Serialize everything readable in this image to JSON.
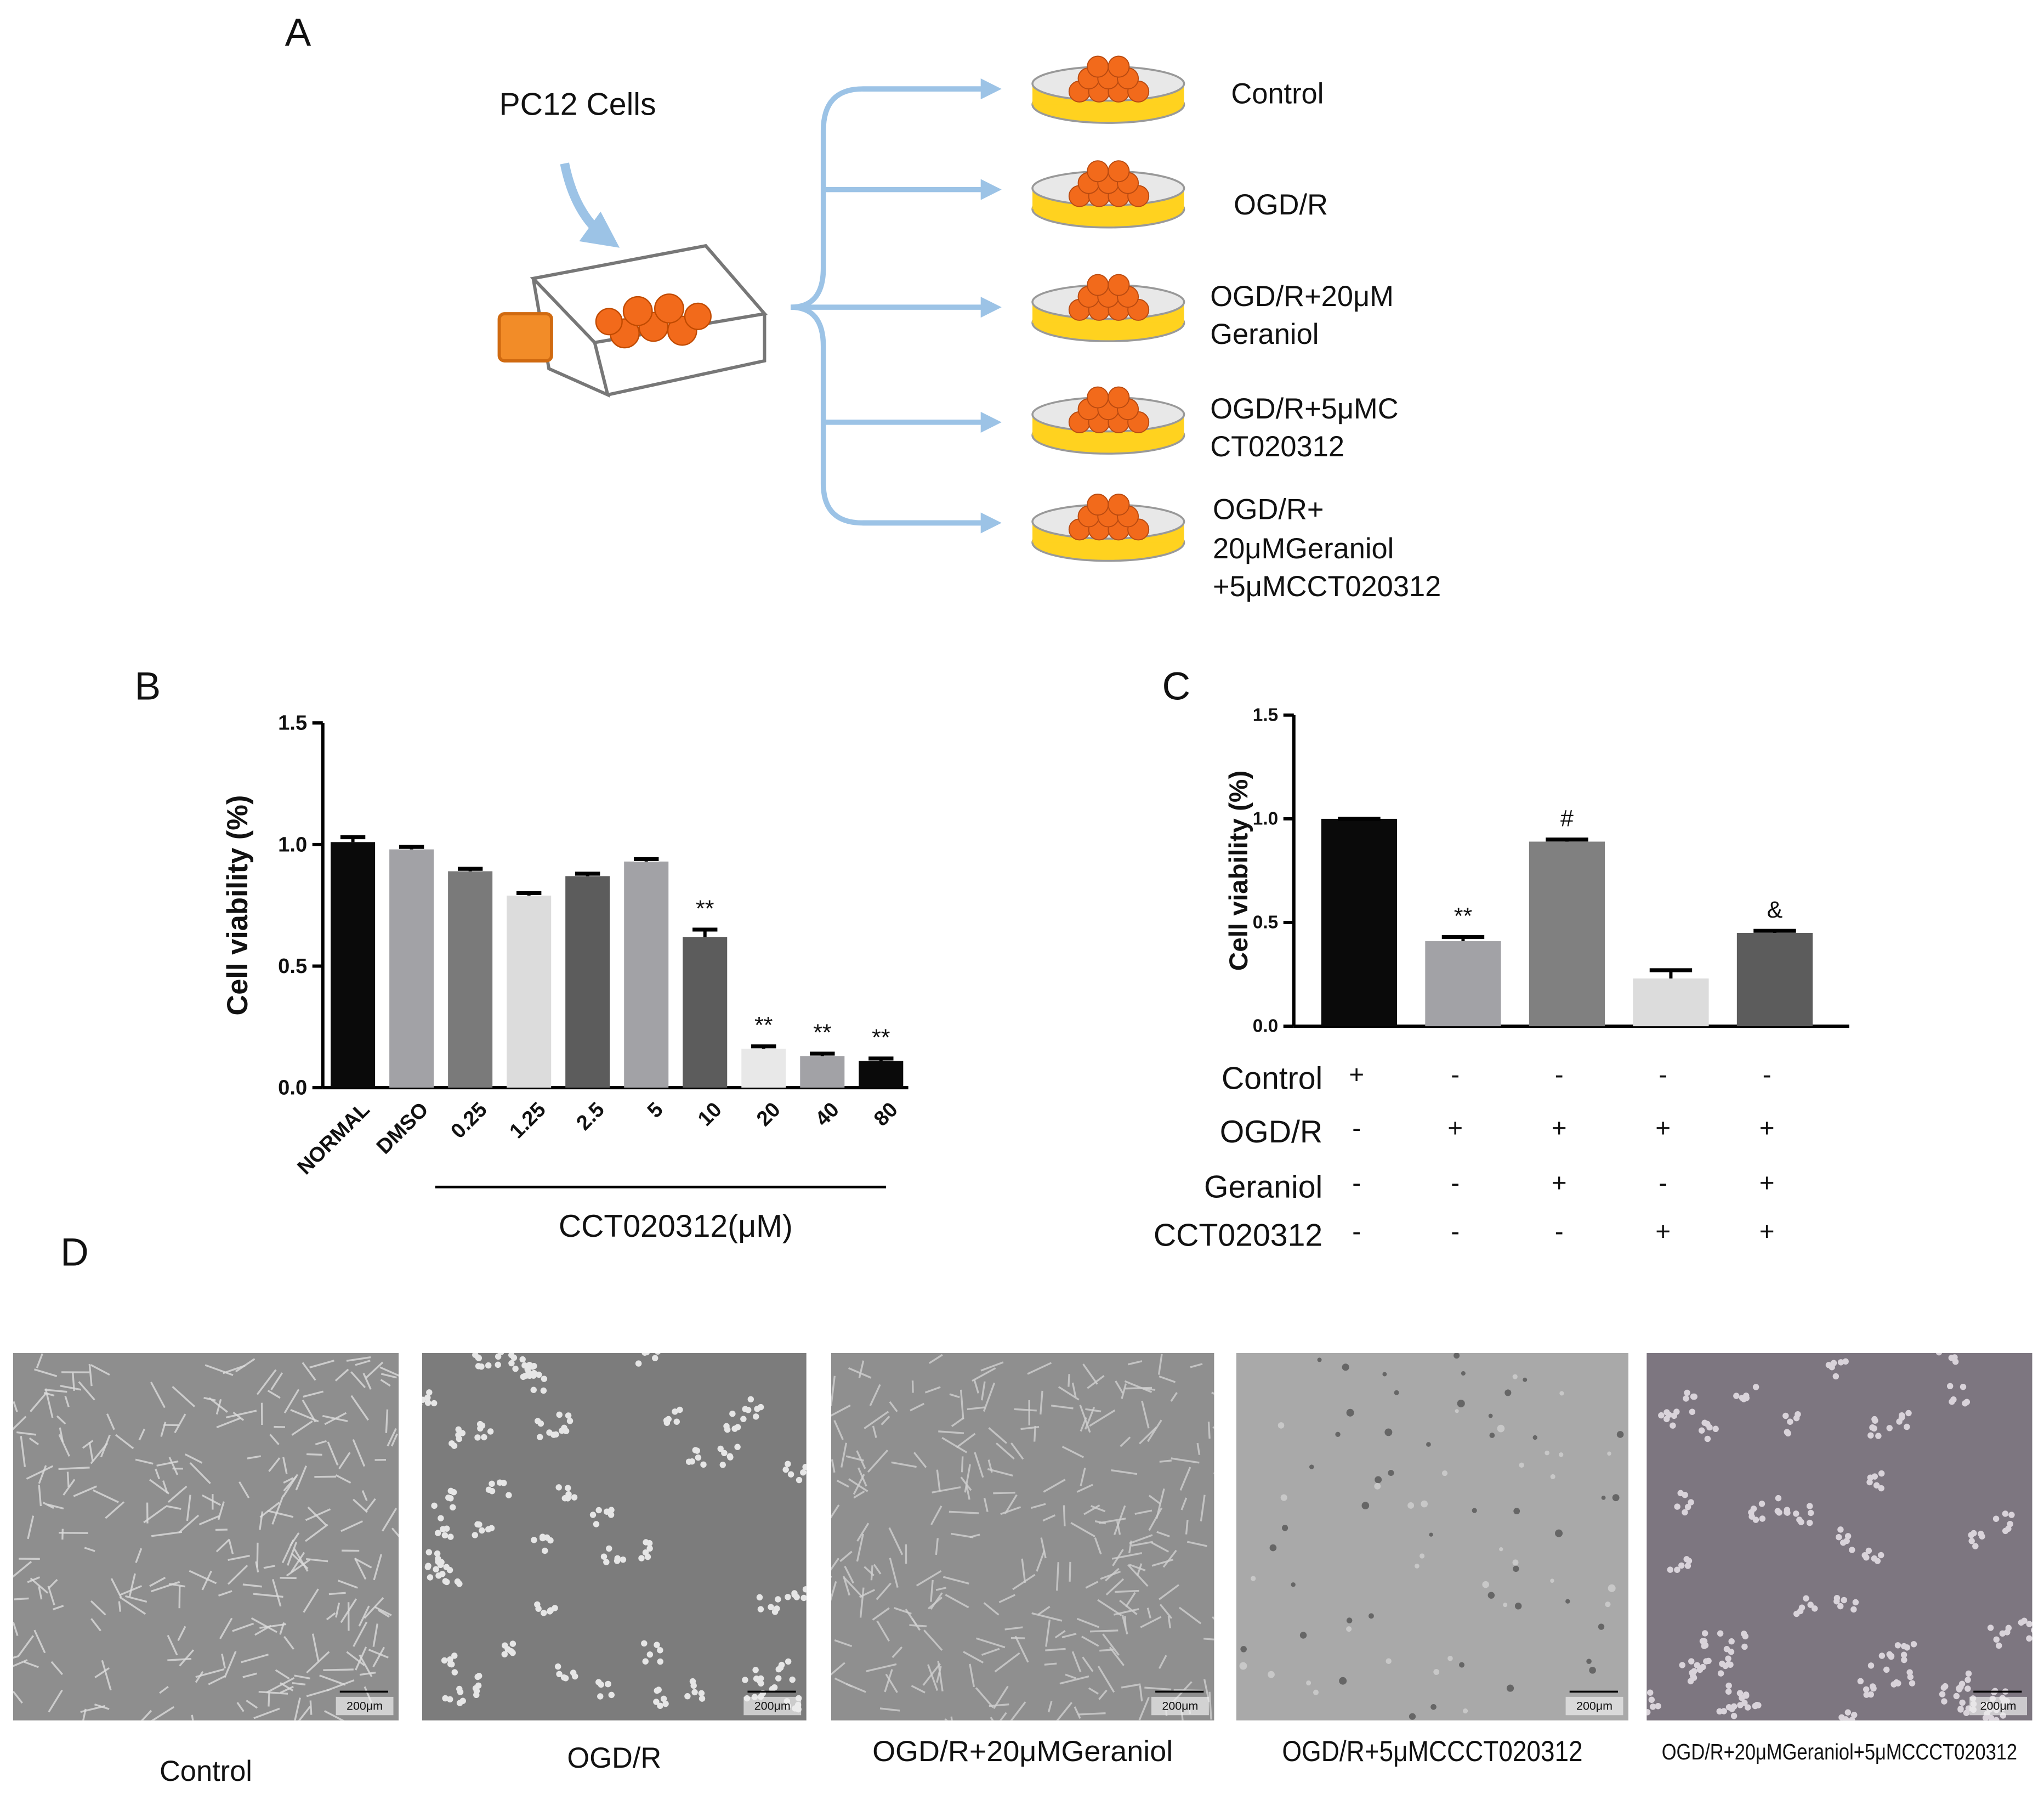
{
  "panel_a": {
    "label": "A",
    "source": "PC12 Cells",
    "groups": [
      [
        "Control"
      ],
      [
        "OGD/R"
      ],
      [
        "OGD/R+20μM",
        "Geraniol"
      ],
      [
        "OGD/R+5μMC",
        "CT020312"
      ],
      [
        "OGD/R+",
        "20μMGeraniol",
        "+5μMCCT020312"
      ]
    ]
  },
  "chart_data": [
    {
      "panel_label": "B",
      "type": "bar",
      "ylabel": "Cell viability (%)",
      "categories": [
        "NORMAL",
        "DMSO",
        "0.25",
        "1.25",
        "2.5",
        "5",
        "10",
        "20",
        "40",
        "80"
      ],
      "values": [
        1.01,
        0.98,
        0.89,
        0.79,
        0.87,
        0.93,
        0.62,
        0.16,
        0.13,
        0.11
      ],
      "errors": [
        0.02,
        0.01,
        0.01,
        0.01,
        0.01,
        0.01,
        0.03,
        0.01,
        0.01,
        0.01
      ],
      "colors": [
        "#0a0a0a",
        "#a2a2a6",
        "#7a7a7a",
        "#dcdcdc",
        "#5c5c5c",
        "#a2a2a6",
        "#5c5c5c",
        "#e8e8e8",
        "#a2a2a6",
        "#0a0a0a"
      ],
      "significance": [
        null,
        null,
        null,
        null,
        null,
        null,
        "**",
        "**",
        "**",
        "**"
      ],
      "group_label": "CCT020312(μM)",
      "ylim": [
        0,
        1.5
      ],
      "yticks": [
        {
          "value": 0,
          "label": "0.0"
        },
        {
          "value": 0.5,
          "label": "0.5"
        },
        {
          "value": 1,
          "label": "1.0"
        },
        {
          "value": 1.5,
          "label": "1.5"
        }
      ]
    },
    {
      "panel_label": "C",
      "type": "bar",
      "ylabel": "Cell viability (%)",
      "values": [
        1.0,
        0.41,
        0.89,
        0.23,
        0.45
      ],
      "errors": [
        0,
        0.02,
        0.01,
        0.04,
        0.01
      ],
      "colors": [
        "#0a0a0a",
        "#a2a2a6",
        "#808080",
        "#dcdcdc",
        "#5c5c5c"
      ],
      "significance": [
        null,
        "**",
        "#",
        null,
        "&"
      ],
      "conditions": [
        {
          "label": "Control",
          "signs": [
            "+",
            "-",
            "-",
            "-",
            "-"
          ]
        },
        {
          "label": "OGD/R",
          "signs": [
            "-",
            "+",
            "+",
            "+",
            "+"
          ]
        },
        {
          "label": "Geraniol",
          "signs": [
            "-",
            "-",
            "+",
            "-",
            "+"
          ]
        },
        {
          "label": "CCT020312",
          "signs": [
            "-",
            "-",
            "-",
            "+",
            "+"
          ]
        }
      ],
      "ylim": [
        0,
        1.5
      ],
      "yticks": [
        {
          "value": 0,
          "label": "0.0"
        },
        {
          "value": 0.5,
          "label": "0.5"
        },
        {
          "value": 1,
          "label": "1.0"
        },
        {
          "value": 1.5,
          "label": "1.5"
        }
      ]
    }
  ],
  "panel_d": {
    "label": "D",
    "scale_bar": "200μm",
    "images": [
      "Control",
      "OGD/R",
      "OGD/R+20μMGeraniol",
      "OGD/R+5μMCCCT020312",
      "OGD/R+20μMGeraniol+5μMCCCT020312"
    ]
  }
}
